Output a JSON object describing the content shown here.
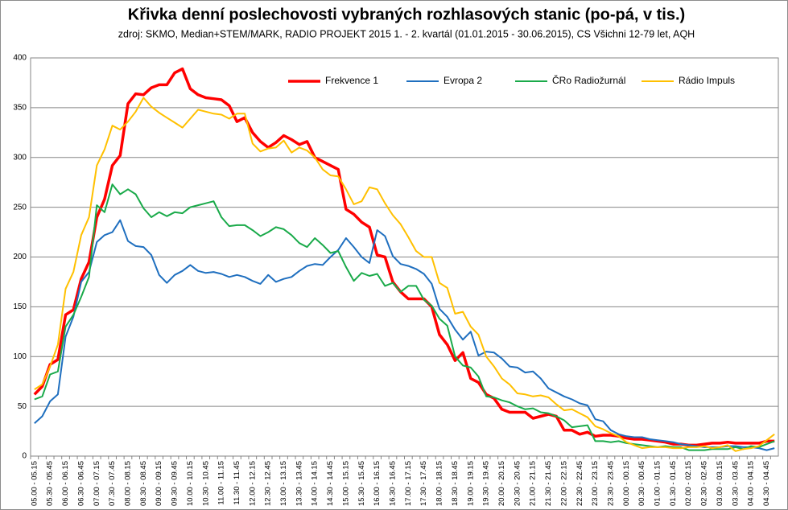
{
  "chart_data": {
    "type": "line",
    "title": "Křivka denní poslechovosti vybraných rozhlasových stanic (po-pá, v tis.)",
    "subtitle": "zdroj: SKMO, Median+STEM/MARK, RADIO PROJEKT 2015 1. - 2. kvartál (01.01.2015 - 30.06.2015), CS Všichni 12-79 let, AQH",
    "categories": [
      "05.00 - 05.15",
      null,
      "05.30 - 05.45",
      null,
      "06.00 - 06.15",
      null,
      "06.30 - 06.45",
      null,
      "07.00 - 07.15",
      null,
      "07.30 - 07.45",
      null,
      "08.00 - 08.15",
      null,
      "08.30 - 08.45",
      null,
      "09.00 - 09.15",
      null,
      "09.30 - 09.45",
      null,
      "10.00 - 10.15",
      null,
      "10.30 - 10.45",
      null,
      "11.00 - 11.15",
      null,
      "11.30 - 11.45",
      null,
      "12.00 - 12.15",
      null,
      "12.30 - 12.45",
      null,
      "13.00 - 13.15",
      null,
      "13.30 - 13.45",
      null,
      "14.00 - 14.15",
      null,
      "14.30 - 14.45",
      null,
      "15.00 - 15.15",
      null,
      "15.30 - 15.45",
      null,
      "16.00 - 16.15",
      null,
      "16.30 - 16.45",
      null,
      "17.00 - 17.15",
      null,
      "17.30 - 17.45",
      null,
      "18.00 - 18.15",
      null,
      "18.30 - 18.45",
      null,
      "19.00 - 19.15",
      null,
      "19.30 - 19.45",
      null,
      "20.00 - 20.15",
      null,
      "20.30 - 20.45",
      null,
      "21.00 - 21.15",
      null,
      "21.30 - 21.45",
      null,
      "22.00 - 22.15",
      null,
      "22.30 - 22.45",
      null,
      "23.00 - 23.15",
      null,
      "23.30 - 23.45",
      null,
      "00.00 - 00.15",
      null,
      "00.30 - 00.45",
      null,
      "01.00 - 01.15",
      null,
      "01.30 - 01.45",
      null,
      "02.00 - 02.15",
      null,
      "02.30 - 02.45",
      null,
      "03.00 - 03.15",
      null,
      "03.30 - 03.45",
      null,
      "04.00 - 04.15",
      null,
      "04.30 - 04.45",
      null
    ],
    "series": [
      {
        "name": "Frekvence 1",
        "color": "#ff0000",
        "width": 3.5,
        "values": [
          62,
          70,
          92,
          97,
          142,
          147,
          178,
          195,
          240,
          258,
          292,
          302,
          354,
          364,
          363,
          370,
          373,
          373,
          385,
          389,
          369,
          363,
          360,
          359,
          358,
          352,
          336,
          340,
          325,
          316,
          310,
          315,
          322,
          318,
          313,
          316,
          300,
          296,
          292,
          288,
          248,
          243,
          235,
          230,
          202,
          200,
          175,
          165,
          158,
          158,
          158,
          150,
          122,
          112,
          96,
          104,
          78,
          74,
          62,
          58,
          47,
          44,
          44,
          44,
          38,
          40,
          42,
          40,
          26,
          26,
          22,
          24,
          20,
          21,
          21,
          20,
          18,
          17,
          17,
          16,
          15,
          14,
          12,
          12,
          11,
          11,
          12,
          13,
          13,
          14,
          13,
          13,
          13,
          13,
          15,
          15
        ]
      },
      {
        "name": "Evropa 2",
        "color": "#1f6fbf",
        "width": 2,
        "values": [
          33,
          40,
          55,
          62,
          120,
          140,
          175,
          185,
          215,
          222,
          225,
          237,
          216,
          211,
          210,
          202,
          182,
          174,
          182,
          186,
          192,
          186,
          184,
          185,
          183,
          180,
          182,
          180,
          176,
          173,
          182,
          175,
          178,
          180,
          186,
          191,
          193,
          192,
          200,
          207,
          219,
          210,
          200,
          194,
          227,
          221,
          201,
          193,
          191,
          188,
          183,
          173,
          148,
          140,
          127,
          117,
          125,
          101,
          105,
          104,
          98,
          90,
          89,
          84,
          85,
          78,
          68,
          64,
          60,
          57,
          53,
          51,
          37,
          35,
          26,
          22,
          20,
          19,
          19,
          17,
          16,
          15,
          14,
          12,
          11,
          10,
          9,
          9,
          9,
          10,
          10,
          9,
          9,
          8,
          6,
          8
        ]
      },
      {
        "name": "ČRo Radiožurnál",
        "color": "#1aaa4a",
        "width": 2,
        "values": [
          57,
          60,
          82,
          85,
          130,
          142,
          160,
          180,
          252,
          245,
          273,
          263,
          268,
          263,
          249,
          240,
          245,
          241,
          245,
          244,
          250,
          252,
          254,
          256,
          240,
          231,
          232,
          232,
          227,
          221,
          225,
          230,
          228,
          222,
          214,
          210,
          219,
          212,
          204,
          206,
          190,
          176,
          184,
          181,
          183,
          171,
          174,
          165,
          171,
          171,
          157,
          151,
          138,
          131,
          100,
          91,
          89,
          80,
          60,
          59,
          56,
          54,
          50,
          47,
          48,
          44,
          43,
          40,
          36,
          29,
          30,
          31,
          15,
          15,
          14,
          15,
          13,
          12,
          11,
          10,
          9,
          10,
          9,
          9,
          6,
          6,
          6,
          7,
          7,
          7,
          9,
          7,
          10,
          9,
          12,
          15
        ]
      },
      {
        "name": "Rádio Impuls",
        "color": "#ffc000",
        "width": 2,
        "values": [
          67,
          72,
          90,
          112,
          168,
          185,
          222,
          240,
          292,
          308,
          332,
          328,
          336,
          346,
          360,
          351,
          345,
          340,
          335,
          330,
          339,
          348,
          346,
          344,
          343,
          339,
          344,
          344,
          314,
          306,
          309,
          310,
          317,
          305,
          310,
          307,
          300,
          288,
          282,
          281,
          268,
          253,
          256,
          270,
          268,
          254,
          242,
          233,
          220,
          206,
          200,
          200,
          174,
          169,
          143,
          145,
          130,
          122,
          100,
          90,
          78,
          72,
          63,
          62,
          60,
          61,
          59,
          52,
          46,
          47,
          43,
          39,
          30,
          27,
          23,
          20,
          14,
          11,
          8,
          9,
          9,
          9,
          8,
          8,
          9,
          9,
          10,
          8,
          9,
          11,
          5,
          7,
          8,
          10,
          16,
          22
        ]
      }
    ],
    "ylim": [
      0,
      400
    ],
    "yticks": [
      0,
      50,
      100,
      150,
      200,
      250,
      300,
      350,
      400
    ],
    "grid": true,
    "legend": "top"
  }
}
